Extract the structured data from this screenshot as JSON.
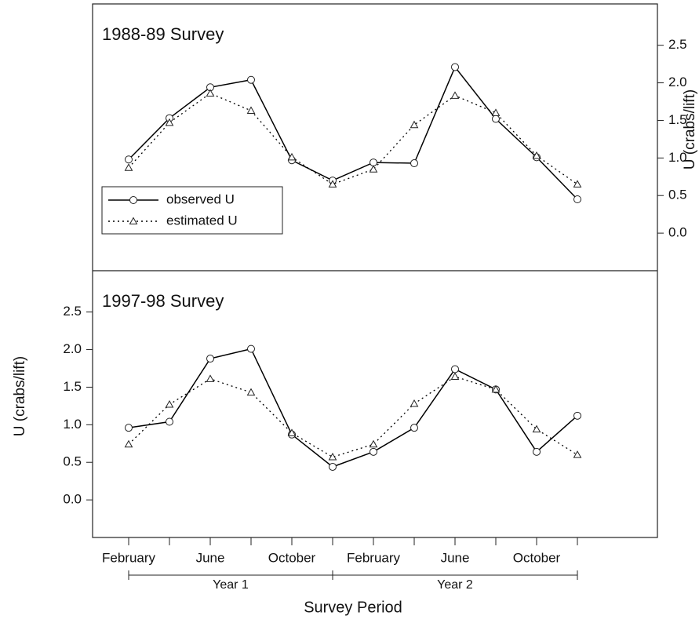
{
  "chart_data": [
    {
      "type": "line",
      "title": "1988-89 Survey",
      "ylabel": "U (crabs/lift)",
      "y_axis_side": "right",
      "ylim": [
        -0.5,
        3.05
      ],
      "yticks": [
        {
          "value": 0,
          "label": "0.0"
        },
        0.5,
        {
          "value": 1,
          "label": "1.0"
        },
        1.5,
        {
          "value": 2,
          "label": "2.0"
        },
        2.5
      ],
      "legend": "lower left",
      "series": [
        {
          "name": "observed U",
          "color": "#000000",
          "marker": "circle",
          "linestyle": "solid",
          "values": [
            0.98,
            1.53,
            1.94,
            2.04,
            0.97,
            0.7,
            0.94,
            0.93,
            2.21,
            1.52,
            1.01,
            0.45
          ]
        },
        {
          "name": "estimated U",
          "color": "#000000",
          "marker": "triangle",
          "linestyle": "dotted",
          "values": [
            0.87,
            1.47,
            1.86,
            1.63,
            1.01,
            0.65,
            0.85,
            1.44,
            1.83,
            1.6,
            1.03,
            0.65
          ]
        }
      ]
    },
    {
      "type": "line",
      "title": "1997-98 Survey",
      "ylabel": "U (crabs/lift)",
      "y_axis_side": "left",
      "ylim": [
        -0.5,
        3.05
      ],
      "yticks": [
        {
          "value": 0,
          "label": "0.0"
        },
        0.5,
        {
          "value": 1,
          "label": "1.0"
        },
        1.5,
        {
          "value": 2,
          "label": "2.0"
        },
        2.5
      ],
      "categories": [
        "February",
        null,
        "June",
        null,
        "October",
        null,
        "February",
        null,
        "June",
        null,
        "October",
        null
      ],
      "x_groups": [
        "Year 1",
        "Year 2"
      ],
      "xlabel": "Survey Period",
      "series": [
        {
          "name": "observed U",
          "color": "#000000",
          "marker": "circle",
          "linestyle": "solid",
          "values": [
            0.96,
            1.04,
            1.88,
            2.01,
            0.87,
            0.44,
            0.64,
            0.96,
            1.74,
            1.47,
            0.64,
            1.12
          ]
        },
        {
          "name": "estimated U",
          "color": "#000000",
          "marker": "triangle",
          "linestyle": "dotted",
          "values": [
            0.74,
            1.27,
            1.61,
            1.43,
            0.89,
            0.57,
            0.74,
            1.28,
            1.64,
            1.47,
            0.94,
            0.6
          ]
        }
      ]
    }
  ]
}
